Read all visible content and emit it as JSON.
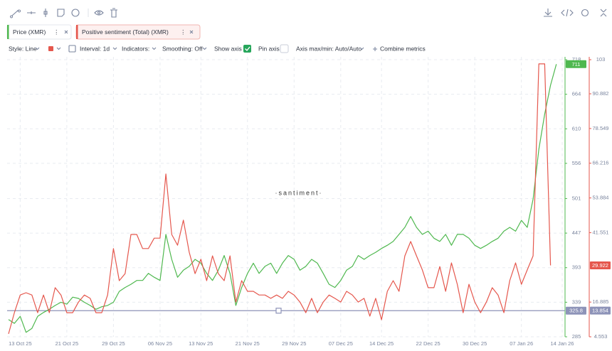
{
  "settings": {
    "style": "Style: Line",
    "interval": "Interval: 1d",
    "indicators": "Indicators:",
    "smoothing": "Smoothing: Off",
    "show_axis": "Show axis",
    "pin_axis": "Pin axis",
    "axis_range": "Axis max/min: Auto/Auto",
    "combine": "Combine metrics"
  },
  "chart_data": {
    "type": "line",
    "watermark": "·santiment·",
    "categories": [
      null,
      null,
      "13 Oct 25",
      null,
      null,
      null,
      null,
      null,
      null,
      null,
      "21 Oct 25",
      null,
      null,
      null,
      null,
      null,
      null,
      null,
      "29 Oct 25",
      null,
      null,
      null,
      null,
      null,
      null,
      null,
      "06 Nov 25",
      null,
      null,
      null,
      null,
      null,
      null,
      "13 Nov 25",
      null,
      null,
      null,
      null,
      null,
      null,
      null,
      "21 Nov 25",
      null,
      null,
      null,
      null,
      null,
      null,
      null,
      "29 Nov 25",
      null,
      null,
      null,
      null,
      null,
      null,
      null,
      "07 Dec 25",
      null,
      null,
      null,
      null,
      null,
      null,
      "14 Dec 25",
      null,
      null,
      null,
      null,
      null,
      null,
      null,
      "22 Dec 25",
      null,
      null,
      null,
      null,
      null,
      null,
      null,
      "30 Dec 25",
      null,
      null,
      null,
      null,
      null,
      null,
      null,
      "07 Jan 26",
      null,
      null,
      null,
      null,
      null,
      null,
      "14 Jan 26"
    ],
    "series": [
      {
        "name": "Price (XMR)",
        "color": "#4fb84f",
        "values": [
          312,
          306,
          317,
          292,
          298,
          317,
          323,
          328,
          334,
          339,
          336,
          347,
          345,
          339,
          334,
          328,
          332,
          334,
          339,
          356,
          362,
          367,
          373,
          373,
          384,
          378,
          373,
          445,
          406,
          378,
          389,
          395,
          406,
          400,
          384,
          373,
          389,
          412,
          384,
          334,
          362,
          384,
          400,
          384,
          395,
          400,
          384,
          400,
          412,
          406,
          389,
          395,
          406,
          400,
          384,
          367,
          362,
          373,
          389,
          395,
          412,
          406,
          412,
          417,
          423,
          428,
          434,
          445,
          456,
          473,
          456,
          445,
          450,
          439,
          434,
          445,
          428,
          445,
          445,
          439,
          428,
          423,
          428,
          434,
          439,
          450,
          456,
          450,
          467,
          456,
          500,
          578,
          633,
          678,
          711,
          null
        ]
      },
      {
        "name": "Positive sentiment (Total) (XMR)",
        "color": "#e5574d",
        "axis": "y2",
        "values": [
          5.6,
          13.1,
          19.4,
          20.2,
          19.4,
          13.1,
          19.4,
          13.1,
          22,
          19.4,
          13.1,
          13.1,
          16.9,
          19.4,
          18.2,
          13.1,
          13.1,
          19.4,
          35.9,
          24.5,
          27,
          40.9,
          40.9,
          35.9,
          35.9,
          39.6,
          39.6,
          62.4,
          40.9,
          37.1,
          46,
          34.6,
          27,
          32.1,
          24.5,
          33.3,
          27,
          24.5,
          33.3,
          16.9,
          24.5,
          20.7,
          20.7,
          19.4,
          19.4,
          18.2,
          19.4,
          18.2,
          20.7,
          19.4,
          16.9,
          13.1,
          18.2,
          13.1,
          16.9,
          19.4,
          18.2,
          16.9,
          20.7,
          19.4,
          16.9,
          18.2,
          11.9,
          18.2,
          10.6,
          20.7,
          24.5,
          20.7,
          33.3,
          38.4,
          33.3,
          28.3,
          22,
          22,
          29.5,
          20.7,
          30.8,
          23.2,
          13.1,
          23.2,
          16.9,
          13.1,
          16.9,
          22,
          19.4,
          13.1,
          24.5,
          30.8,
          23.2,
          28.3,
          33.3,
          101.5,
          101.5,
          29.922,
          null,
          null
        ]
      }
    ],
    "ylim": [
      285,
      718
    ],
    "yticks": [
      285,
      339,
      393,
      447,
      501,
      556,
      610,
      664,
      718
    ],
    "y2lim": [
      4.553,
      103
    ],
    "y2ticks": [
      4.553,
      16.885,
      41.551,
      53.884,
      66.216,
      78.549,
      90.882,
      103
    ],
    "grid": true,
    "hline": {
      "value": 325.8,
      "y2_value": 13.854
    }
  }
}
